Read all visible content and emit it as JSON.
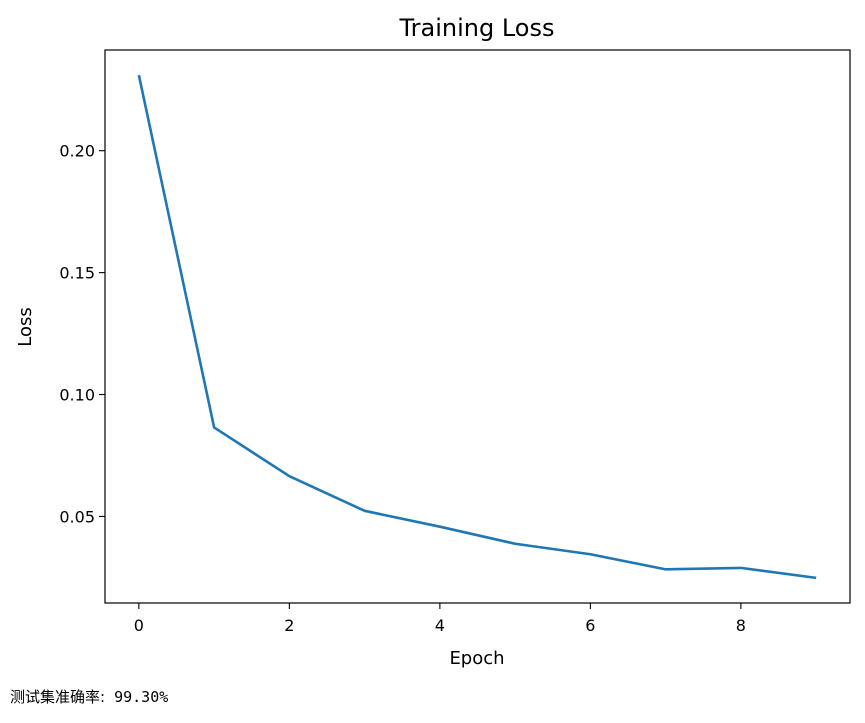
{
  "chart_data": {
    "type": "line",
    "title": "Training Loss",
    "xlabel": "Epoch",
    "ylabel": "Loss",
    "x": [
      0,
      1,
      2,
      3,
      4,
      5,
      6,
      7,
      8,
      9
    ],
    "series": [
      {
        "values": [
          0.231,
          0.0865,
          0.0665,
          0.0523,
          0.0458,
          0.0388,
          0.0345,
          0.0283,
          0.0289,
          0.0248
        ],
        "color": "#1f77b4"
      }
    ],
    "xticks": [
      0,
      2,
      4,
      6,
      8
    ],
    "xtick_labels": [
      "0",
      "2",
      "4",
      "6",
      "8"
    ],
    "yticks": [
      0.05,
      0.1,
      0.15,
      0.2
    ],
    "ytick_labels": [
      "0.05",
      "0.10",
      "0.15",
      "0.20"
    ],
    "xlim": [
      -0.45,
      9.45
    ],
    "ylim": [
      0.0145,
      0.2413
    ],
    "grid": false,
    "legend": false
  },
  "output": {
    "label": "测试集准确率:",
    "value": "99.30%"
  }
}
